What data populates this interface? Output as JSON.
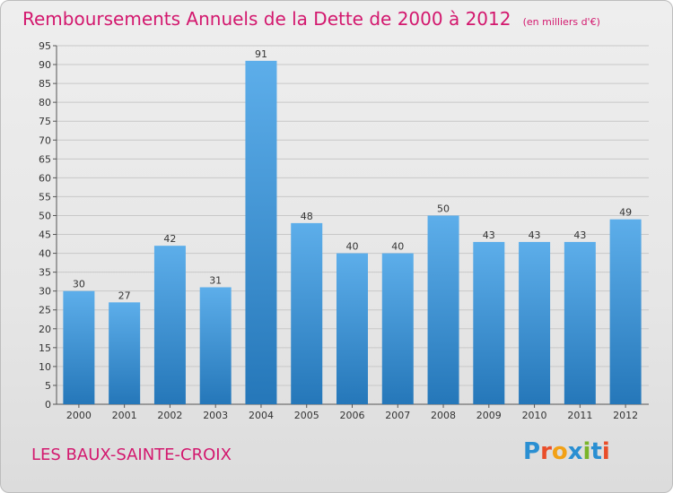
{
  "title": "Remboursements Annuels de la Dette de 2000 à 2012",
  "subtitle": "(en milliers d'€)",
  "commune": "LES BAUX-SAINTE-CROIX",
  "logo": {
    "text": "Proxiti",
    "colors": [
      "#2a8fd2",
      "#e94e2a",
      "#f2a116",
      "#2a8fd2",
      "#7ab42a",
      "#2a8fd2",
      "#e94e2a"
    ]
  },
  "colors": {
    "title": "#d3186e",
    "bar_top": "#5daeea",
    "bar_bottom": "#2577b9",
    "grid": "#c8c8c8"
  },
  "chart_data": {
    "type": "bar",
    "categories": [
      "2000",
      "2001",
      "2002",
      "2003",
      "2004",
      "2005",
      "2006",
      "2007",
      "2008",
      "2009",
      "2010",
      "2011",
      "2012"
    ],
    "values": [
      30,
      27,
      42,
      31,
      91,
      48,
      40,
      40,
      50,
      43,
      43,
      43,
      49
    ],
    "ylim": [
      0,
      95
    ],
    "yticks": [
      0,
      5,
      10,
      15,
      20,
      25,
      30,
      35,
      40,
      45,
      50,
      55,
      60,
      65,
      70,
      75,
      80,
      85,
      90,
      95
    ],
    "grid": true,
    "data_labels": true
  }
}
